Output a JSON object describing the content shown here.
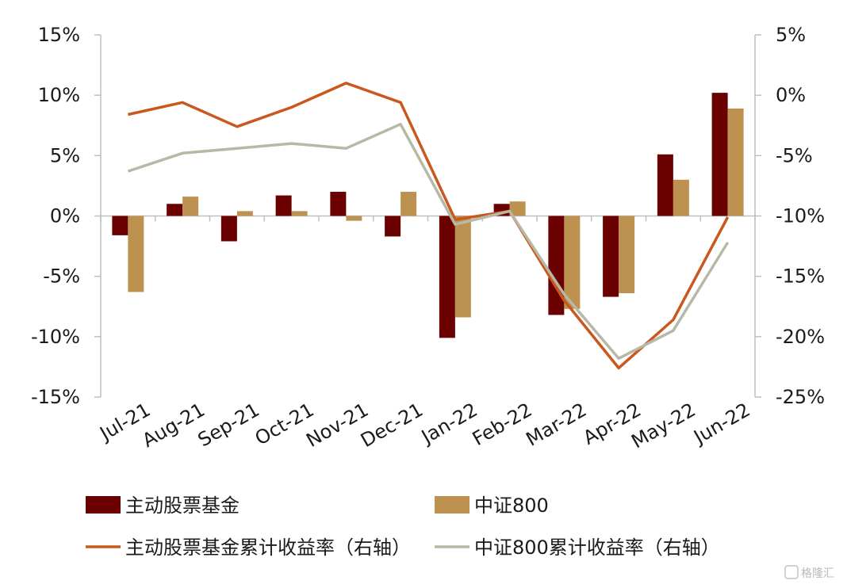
{
  "chart_data": {
    "type": "bar",
    "categories": [
      "Jul-21",
      "Aug-21",
      "Sep-21",
      "Oct-21",
      "Nov-21",
      "Dec-21",
      "Jan-22",
      "Feb-22",
      "Mar-22",
      "Apr-22",
      "May-22",
      "Jun-22"
    ],
    "left_axis": {
      "ylim": [
        -15,
        15
      ],
      "ticks": [
        15,
        10,
        5,
        0,
        -5,
        -10,
        -15
      ],
      "tick_labels": [
        "15%",
        "10%",
        "5%",
        "0%",
        "-5%",
        "-10%",
        "-15%"
      ]
    },
    "right_axis": {
      "ylim": [
        -25,
        5
      ],
      "ticks": [
        5,
        0,
        -5,
        -10,
        -15,
        -20,
        -25
      ],
      "tick_labels": [
        "5%",
        "0%",
        "-5%",
        "-10%",
        "-15%",
        "-20%",
        "-25%"
      ]
    },
    "bar_series": [
      {
        "name": "主动股票基金",
        "color": "#6b0000",
        "values": [
          -1.6,
          1.0,
          -2.1,
          1.7,
          2.0,
          -1.7,
          -10.1,
          1.0,
          -8.2,
          -6.7,
          5.1,
          10.2
        ]
      },
      {
        "name": "中证800",
        "color": "#bd9150",
        "values": [
          -6.3,
          1.6,
          0.4,
          0.4,
          -0.4,
          2.0,
          -8.4,
          1.2,
          -7.7,
          -6.4,
          3.0,
          8.9
        ]
      }
    ],
    "line_series": [
      {
        "name": "主动股票基金累计收益率（右轴）",
        "color": "#c9581e",
        "values": [
          -1.6,
          -0.6,
          -2.6,
          -1.0,
          1.0,
          -0.6,
          -10.3,
          -9.6,
          -17.0,
          -22.6,
          -18.6,
          -10.1
        ]
      },
      {
        "name": "中证800累计收益率（右轴）",
        "color": "#b8b8a6",
        "values": [
          -6.3,
          -4.8,
          -4.4,
          -4.0,
          -4.4,
          -2.4,
          -10.7,
          -9.6,
          -16.5,
          -21.8,
          -19.5,
          -12.2
        ]
      }
    ]
  },
  "watermark": "格隆汇"
}
